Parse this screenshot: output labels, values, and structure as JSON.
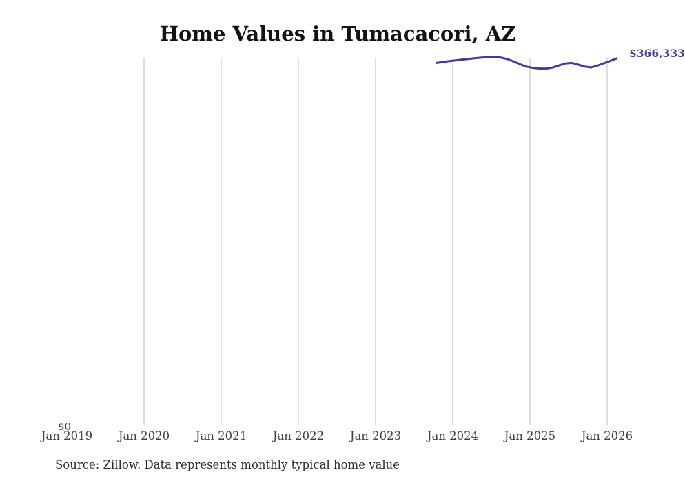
{
  "title": "Home Values in Tumacacori, AZ",
  "source_note": "Source: Zillow. Data represents monthly typical home value",
  "y_zero_label": "$0",
  "last_value_label": "$366,333",
  "colors": {
    "line": "#3c3c99",
    "grid": "#cccccc",
    "title_text": "#131313",
    "axis_text": "#3f3f3f",
    "value_label": "#3d3d99",
    "background": "#ffffff"
  },
  "chart_data": {
    "type": "line",
    "title": "Home Values in Tumacacori, AZ",
    "xlabel": "",
    "ylabel": "",
    "ylim": [
      0,
      380000
    ],
    "grid": "vertical-only",
    "legend_position": "none",
    "x_tick_labels": [
      "Jan 2019",
      "Jan 2020",
      "Jan 2021",
      "Jan 2022",
      "Jan 2023",
      "Jan 2024",
      "Jan 2025",
      "Jan 2026"
    ],
    "y_tick_labels": [
      "$0"
    ],
    "annotation_last_value": "$366,333",
    "x": [
      "Oct 2023",
      "Nov 2023",
      "Dec 2023",
      "Jan 2024",
      "Feb 2024",
      "Mar 2024",
      "Apr 2024",
      "May 2024",
      "Jun 2024",
      "Jul 2024",
      "Aug 2024",
      "Sep 2024",
      "Oct 2024",
      "Nov 2024",
      "Dec 2024",
      "Jan 2025",
      "Feb 2025",
      "Mar 2025",
      "Apr 2025",
      "May 2025",
      "Jun 2025",
      "Jul 2025",
      "Aug 2025",
      "Sep 2025",
      "Oct 2025",
      "Nov 2025",
      "Dec 2025",
      "Jan 2026",
      "Feb 2026"
    ],
    "series": [
      {
        "name": "Monthly typical home value",
        "values": [
          361900,
          362800,
          363800,
          364500,
          365200,
          365900,
          366600,
          367200,
          367600,
          367800,
          367200,
          365700,
          363300,
          360500,
          358200,
          357000,
          356400,
          356200,
          357200,
          359300,
          361300,
          361900,
          360300,
          358300,
          357400,
          359200,
          361500,
          363900,
          366333
        ]
      }
    ]
  }
}
